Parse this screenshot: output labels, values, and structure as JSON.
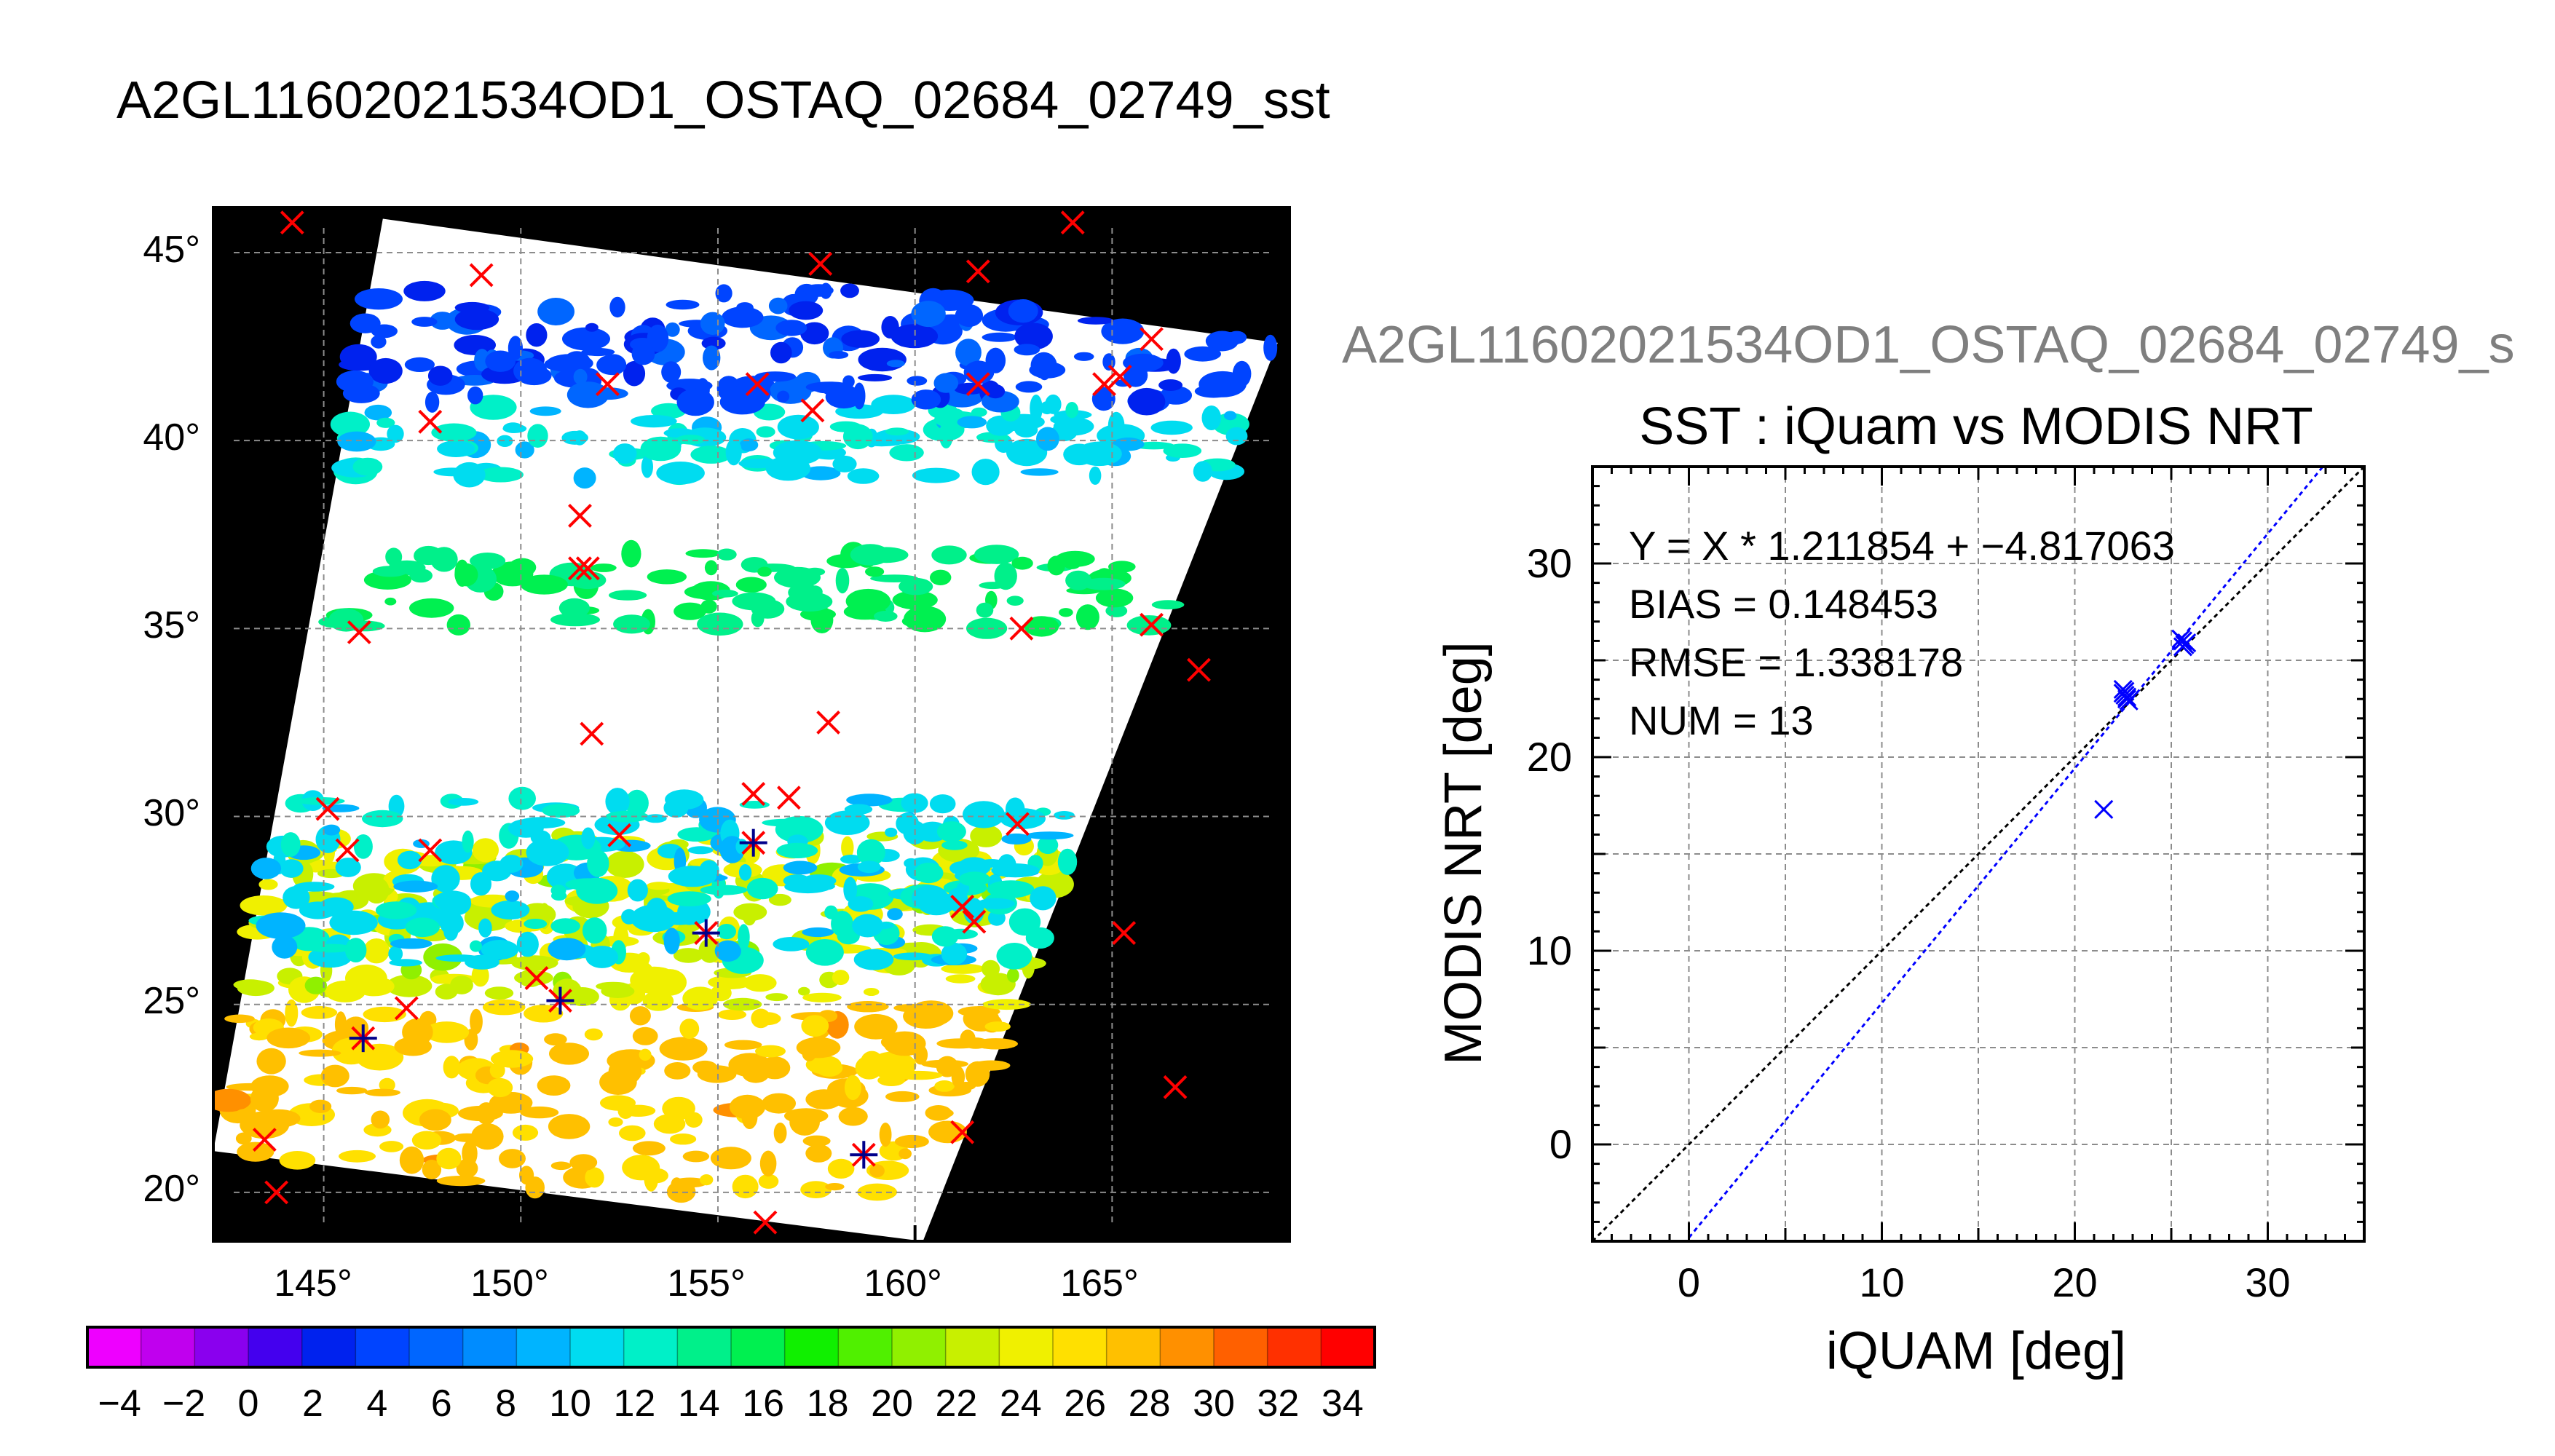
{
  "figure": {
    "main_title": "A2GL11602021534OD1_OSTAQ_02684_02749_sst",
    "side_title": "A2GL11602021534OD1_OSTAQ_02684_02749_s"
  },
  "chart_data": [
    {
      "type": "heatmap",
      "title": "",
      "lon_ticks": [
        145,
        150,
        155,
        160,
        165
      ],
      "lon_tick_labels": [
        "145°",
        "150°",
        "155°",
        "160°",
        "165°"
      ],
      "lat_ticks": [
        20,
        25,
        30,
        35,
        40,
        45
      ],
      "lat_tick_labels": [
        "20°",
        "25°",
        "30°",
        "35°",
        "40°",
        "45°"
      ],
      "xlim": [
        142.2,
        169.5
      ],
      "ylim": [
        18.7,
        46.2
      ],
      "grid": true,
      "swath_corners": [
        [
          146.5,
          45.9
        ],
        [
          169.2,
          42.6
        ],
        [
          160.2,
          18.7
        ],
        [
          142.2,
          21.1
        ]
      ],
      "sst_patches": [
        {
          "band": "20-28",
          "lat_range": [
            20.0,
            25.0
          ],
          "value": 27
        },
        {
          "band": "22-24",
          "lat_range": [
            25.0,
            29.5
          ],
          "value": 23
        },
        {
          "band": "10-14",
          "lat_range": [
            26.0,
            30.5
          ],
          "value": 11
        },
        {
          "band": "14-16",
          "lat_range": [
            35.0,
            37.0
          ],
          "value": 15
        },
        {
          "band": "10-12",
          "lat_range": [
            39.0,
            41.0
          ],
          "value": 11
        },
        {
          "band": "2-6",
          "lat_range": [
            41.0,
            44.0
          ],
          "value": 4
        }
      ],
      "markers": [
        {
          "lon": 144.2,
          "lat": 45.8,
          "type": "x"
        },
        {
          "lon": 149.0,
          "lat": 44.4,
          "type": "x"
        },
        {
          "lon": 157.6,
          "lat": 44.7,
          "type": "x"
        },
        {
          "lon": 161.6,
          "lat": 44.5,
          "type": "x"
        },
        {
          "lon": 164.0,
          "lat": 45.8,
          "type": "x"
        },
        {
          "lon": 166.0,
          "lat": 42.7,
          "type": "x"
        },
        {
          "lon": 147.7,
          "lat": 40.5,
          "type": "x"
        },
        {
          "lon": 152.2,
          "lat": 41.5,
          "type": "x"
        },
        {
          "lon": 156.0,
          "lat": 41.5,
          "type": "x"
        },
        {
          "lon": 157.4,
          "lat": 40.8,
          "type": "x"
        },
        {
          "lon": 161.6,
          "lat": 41.5,
          "type": "x"
        },
        {
          "lon": 164.8,
          "lat": 41.5,
          "type": "x"
        },
        {
          "lon": 165.2,
          "lat": 41.7,
          "type": "x"
        },
        {
          "lon": 151.5,
          "lat": 38.0,
          "type": "x"
        },
        {
          "lon": 151.5,
          "lat": 36.6,
          "type": "x"
        },
        {
          "lon": 151.7,
          "lat": 36.6,
          "type": "x"
        },
        {
          "lon": 145.9,
          "lat": 34.9,
          "type": "x"
        },
        {
          "lon": 162.7,
          "lat": 35.0,
          "type": "x"
        },
        {
          "lon": 166.0,
          "lat": 35.1,
          "type": "x"
        },
        {
          "lon": 167.2,
          "lat": 33.9,
          "type": "x"
        },
        {
          "lon": 151.8,
          "lat": 32.2,
          "type": "x"
        },
        {
          "lon": 157.8,
          "lat": 32.5,
          "type": "x"
        },
        {
          "lon": 145.1,
          "lat": 30.2,
          "type": "x"
        },
        {
          "lon": 145.6,
          "lat": 29.1,
          "type": "x"
        },
        {
          "lon": 147.7,
          "lat": 29.1,
          "type": "x"
        },
        {
          "lon": 152.5,
          "lat": 29.5,
          "type": "x"
        },
        {
          "lon": 155.9,
          "lat": 30.6,
          "type": "x"
        },
        {
          "lon": 156.8,
          "lat": 30.5,
          "type": "x"
        },
        {
          "lon": 162.6,
          "lat": 29.8,
          "type": "x"
        },
        {
          "lon": 161.2,
          "lat": 27.6,
          "type": "x"
        },
        {
          "lon": 161.5,
          "lat": 27.2,
          "type": "x"
        },
        {
          "lon": 165.3,
          "lat": 26.9,
          "type": "x"
        },
        {
          "lon": 150.4,
          "lat": 25.7,
          "type": "x"
        },
        {
          "lon": 147.1,
          "lat": 24.9,
          "type": "x"
        },
        {
          "lon": 143.5,
          "lat": 21.4,
          "type": "x"
        },
        {
          "lon": 143.8,
          "lat": 20.0,
          "type": "x"
        },
        {
          "lon": 156.2,
          "lat": 19.2,
          "type": "x"
        },
        {
          "lon": 161.2,
          "lat": 21.6,
          "type": "x"
        },
        {
          "lon": 166.6,
          "lat": 22.8,
          "type": "x"
        },
        {
          "lon": 155.9,
          "lat": 29.3,
          "type": "star"
        },
        {
          "lon": 154.7,
          "lat": 26.9,
          "type": "star"
        },
        {
          "lon": 151.0,
          "lat": 25.1,
          "type": "star"
        },
        {
          "lon": 146.0,
          "lat": 24.1,
          "type": "star"
        },
        {
          "lon": 158.7,
          "lat": 21.0,
          "type": "star"
        }
      ]
    },
    {
      "type": "scatter",
      "title": "SST : iQuam vs MODIS NRT",
      "xlabel": "iQUAM [deg]",
      "ylabel": "MODIS NRT [deg]",
      "xlim": [
        -5,
        35
      ],
      "ylim": [
        -5,
        35
      ],
      "xticks": [
        0,
        10,
        20,
        30
      ],
      "yticks": [
        0,
        10,
        20,
        30
      ],
      "grid": true,
      "annotations": [
        "Y = X * 1.211854 + −4.817063",
        "BIAS = 0.148453",
        "RMSE = 1.338178",
        "NUM = 13"
      ],
      "fit": {
        "slope": 1.211854,
        "intercept": -4.817063
      },
      "one_to_one": true,
      "points": [
        {
          "x": 21.5,
          "y": 17.3
        },
        {
          "x": 22.5,
          "y": 23.5
        },
        {
          "x": 22.6,
          "y": 23.2
        },
        {
          "x": 22.7,
          "y": 23.0
        },
        {
          "x": 22.6,
          "y": 23.4
        },
        {
          "x": 22.8,
          "y": 22.9
        },
        {
          "x": 22.5,
          "y": 23.3
        },
        {
          "x": 25.6,
          "y": 26.0
        },
        {
          "x": 25.7,
          "y": 25.8
        },
        {
          "x": 25.5,
          "y": 26.1
        },
        {
          "x": 25.8,
          "y": 25.9
        },
        {
          "x": 25.6,
          "y": 25.7
        },
        {
          "x": 22.7,
          "y": 23.1
        }
      ]
    }
  ],
  "colorbar": {
    "range": [
      -5,
      35
    ],
    "step": 2,
    "tick_labels": [
      "−4",
      "−2",
      "0",
      "2",
      "4",
      "6",
      "8",
      "10",
      "12",
      "14",
      "16",
      "18",
      "20",
      "22",
      "24",
      "26",
      "28",
      "30",
      "32",
      "34"
    ],
    "colors": [
      "#ee00ff",
      "#c000ee",
      "#8a00ee",
      "#4400ee",
      "#0022ee",
      "#0044ff",
      "#0066ff",
      "#008cff",
      "#00b4ff",
      "#00dcf0",
      "#00f0c8",
      "#00f08a",
      "#00f050",
      "#10f000",
      "#50f000",
      "#90f000",
      "#c8f000",
      "#f0f000",
      "#ffe000",
      "#ffc000",
      "#ff9000",
      "#ff6000",
      "#ff3000",
      "#ff0000"
    ]
  },
  "colors": {
    "marker_red": "#ff0000",
    "marker_star": "#00008b",
    "scatter_points": "#0000ff",
    "fit_line": "#0000ff",
    "one_to_one_line": "#000000",
    "side_title": "#7f7f7f"
  }
}
